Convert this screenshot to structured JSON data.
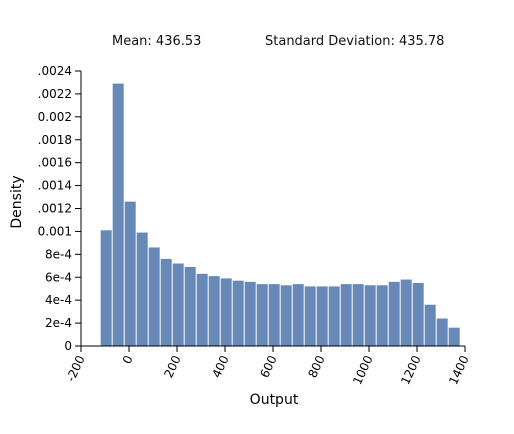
{
  "stats": {
    "mean_label": "Mean: 436.53",
    "sd_label": "Standard Deviation: 435.78"
  },
  "chart_data": {
    "type": "bar",
    "title": "",
    "xlabel": "Output",
    "ylabel": "Density",
    "xlim": [
      -200,
      1400
    ],
    "ylim": [
      0,
      0.0024
    ],
    "x_ticks": [
      -200,
      0,
      200,
      400,
      600,
      800,
      1000,
      1200,
      1400
    ],
    "x_tick_labels": [
      "-200",
      "0",
      "200",
      "400",
      "600",
      "800",
      "1000",
      "1200",
      "1400"
    ],
    "y_ticks": [
      0,
      0.0002,
      0.0004,
      0.0006,
      0.0008,
      0.001,
      0.0012,
      0.0014,
      0.0016,
      0.0018,
      0.002,
      0.0022,
      0.0024
    ],
    "y_tick_labels": [
      "0",
      "2e-4",
      "4e-4",
      "6e-4",
      "8e-4",
      "0.001",
      ".0012",
      ".0014",
      ".0016",
      ".0018",
      "0.002",
      ".0022",
      ".0024"
    ],
    "bar_color": "#6689b8",
    "bins": [
      {
        "x0": -120,
        "x1": -70,
        "value": 0.00101
      },
      {
        "x0": -70,
        "x1": -20,
        "value": 0.00229
      },
      {
        "x0": -20,
        "x1": 30,
        "value": 0.00126
      },
      {
        "x0": 30,
        "x1": 80,
        "value": 0.00099
      },
      {
        "x0": 80,
        "x1": 130,
        "value": 0.00086
      },
      {
        "x0": 130,
        "x1": 180,
        "value": 0.00076
      },
      {
        "x0": 180,
        "x1": 230,
        "value": 0.00072
      },
      {
        "x0": 230,
        "x1": 280,
        "value": 0.00069
      },
      {
        "x0": 280,
        "x1": 330,
        "value": 0.00063
      },
      {
        "x0": 330,
        "x1": 380,
        "value": 0.00061
      },
      {
        "x0": 380,
        "x1": 430,
        "value": 0.00059
      },
      {
        "x0": 430,
        "x1": 480,
        "value": 0.00057
      },
      {
        "x0": 480,
        "x1": 530,
        "value": 0.00056
      },
      {
        "x0": 530,
        "x1": 580,
        "value": 0.00054
      },
      {
        "x0": 580,
        "x1": 630,
        "value": 0.00054
      },
      {
        "x0": 630,
        "x1": 680,
        "value": 0.00053
      },
      {
        "x0": 680,
        "x1": 730,
        "value": 0.00054
      },
      {
        "x0": 730,
        "x1": 780,
        "value": 0.00052
      },
      {
        "x0": 780,
        "x1": 830,
        "value": 0.00052
      },
      {
        "x0": 830,
        "x1": 880,
        "value": 0.00052
      },
      {
        "x0": 880,
        "x1": 930,
        "value": 0.00054
      },
      {
        "x0": 930,
        "x1": 980,
        "value": 0.00054
      },
      {
        "x0": 980,
        "x1": 1030,
        "value": 0.00053
      },
      {
        "x0": 1030,
        "x1": 1080,
        "value": 0.00053
      },
      {
        "x0": 1080,
        "x1": 1130,
        "value": 0.00056
      },
      {
        "x0": 1130,
        "x1": 1180,
        "value": 0.00058
      },
      {
        "x0": 1180,
        "x1": 1230,
        "value": 0.00055
      },
      {
        "x0": 1230,
        "x1": 1280,
        "value": 0.00036
      },
      {
        "x0": 1280,
        "x1": 1330,
        "value": 0.00024
      },
      {
        "x0": 1330,
        "x1": 1380,
        "value": 0.00016
      }
    ]
  }
}
